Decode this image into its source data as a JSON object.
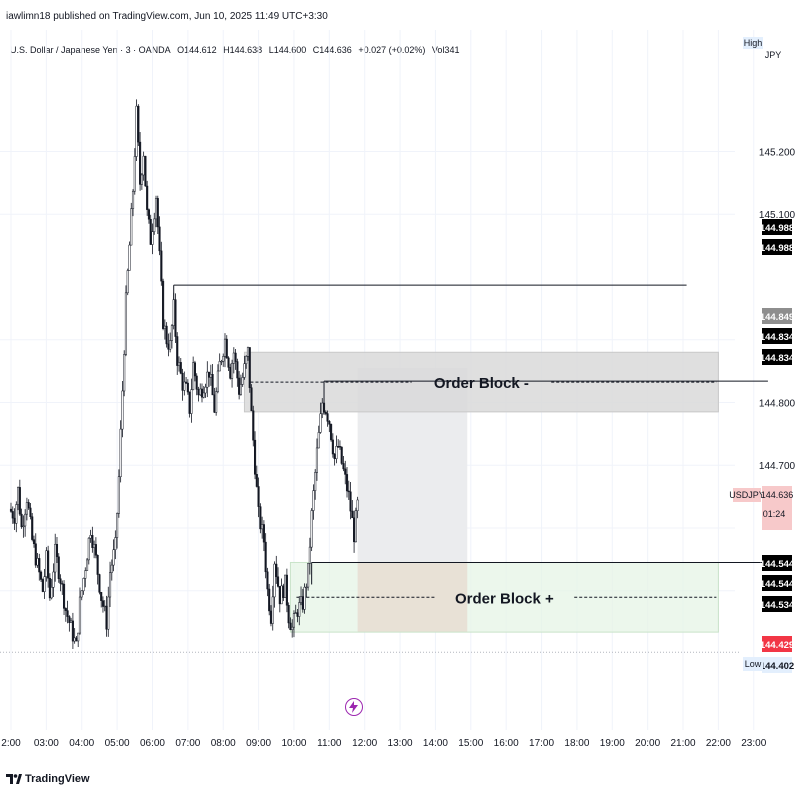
{
  "header": {
    "published": "iawlimn18 published on TradingView.com, Jun 10, 2025 11:49 UTC+3:30"
  },
  "symbol": {
    "name": "U.S. Dollar / Japanese Yen · 3 · OANDA",
    "open": "O144.612",
    "high": "H144.638",
    "low": "L144.600",
    "close": "C144.636",
    "change": "+0.027 (+0.02%)",
    "volume": "Vol341"
  },
  "axis_labels": {
    "currency": "JPY",
    "high_tag": "High",
    "low_tag": "Low",
    "symbol_tag": "USDJPY",
    "countdown": "01:24",
    "last_price": "144.636"
  },
  "watermark": "TradingView",
  "colors": {
    "up": "#26a69a",
    "down": "#ef5350",
    "candle": "#131722",
    "bear_block": "#d9d9d9",
    "bull_block": "#e6f4e6",
    "gap_fill": "#f0a7a8",
    "grey_zone": "#ebecee",
    "price_tag_dark": "#000000",
    "price_tag_red": "#f23645"
  },
  "chart_data": {
    "type": "candlestick",
    "instrument": "USDJPY",
    "timeframe": "3",
    "exchange": "OANDA",
    "ylim": [
      144.38,
      145.29
    ],
    "y_ticks": [
      "145.200",
      "145.100",
      "144.800",
      "144.700"
    ],
    "x_ticks": [
      "2:00",
      "03:00",
      "04:00",
      "05:00",
      "06:00",
      "07:00",
      "08:00",
      "09:00",
      "10:00",
      "11:00",
      "12:00",
      "13:00",
      "14:00",
      "15:00",
      "16:00",
      "17:00",
      "18:00",
      "19:00",
      "20:00",
      "21:00",
      "22:00",
      "23:00"
    ],
    "price_tags": [
      {
        "label": "144.988",
        "style": "dark"
      },
      {
        "label": "144.988",
        "style": "dark"
      },
      {
        "label": "144.849",
        "style": "grey"
      },
      {
        "label": "144.834",
        "style": "dark"
      },
      {
        "label": "144.834",
        "style": "dark"
      },
      {
        "label": "144.544",
        "style": "dark"
      },
      {
        "label": "144.544",
        "style": "dark"
      },
      {
        "label": "144.534",
        "style": "dark"
      },
      {
        "label": "144.429",
        "style": "red"
      },
      {
        "label": "144.402",
        "style": "light"
      }
    ],
    "zones": [
      {
        "label": "Order Block -",
        "kind": "bearish",
        "top": 144.88,
        "bottom": 144.785,
        "from_hour": 8.6,
        "to_hour": 22.0
      },
      {
        "label": "Order Block +",
        "kind": "bullish",
        "top": 144.545,
        "bottom": 144.434,
        "from_hour": 9.9,
        "to_hour": 22.0
      }
    ],
    "levels": [
      {
        "price": 144.987,
        "from_hour": 6.6,
        "to_hour": 21.1
      },
      {
        "price": 144.834,
        "from_hour": 10.85,
        "to_hour": 23.4
      },
      {
        "price": 144.545,
        "from_hour": 10.5,
        "to_hour": 23.4
      }
    ],
    "shaded_ranges": [
      {
        "kind": "projection",
        "top": 144.855,
        "bottom": 144.545,
        "from_hour": 11.8,
        "to_hour": 14.9
      },
      {
        "kind": "gap",
        "top": 144.544,
        "bottom": 144.434,
        "from_hour": 11.8,
        "to_hour": 14.9
      }
    ],
    "price_path": [
      [
        1.95,
        144.63
      ],
      [
        2.1,
        144.62
      ],
      [
        2.2,
        144.66
      ],
      [
        2.3,
        144.6
      ],
      [
        2.45,
        144.65
      ],
      [
        2.6,
        144.58
      ],
      [
        2.75,
        144.54
      ],
      [
        2.9,
        144.5
      ],
      [
        3.0,
        144.55
      ],
      [
        3.1,
        144.49
      ],
      [
        3.25,
        144.56
      ],
      [
        3.4,
        144.52
      ],
      [
        3.55,
        144.47
      ],
      [
        3.7,
        144.44
      ],
      [
        3.85,
        144.41
      ],
      [
        3.95,
        144.48
      ],
      [
        4.1,
        144.54
      ],
      [
        4.25,
        144.6
      ],
      [
        4.4,
        144.55
      ],
      [
        4.55,
        144.49
      ],
      [
        4.7,
        144.45
      ],
      [
        4.8,
        144.53
      ],
      [
        4.95,
        144.57
      ],
      [
        5.05,
        144.68
      ],
      [
        5.15,
        144.82
      ],
      [
        5.25,
        144.96
      ],
      [
        5.35,
        145.05
      ],
      [
        5.45,
        145.14
      ],
      [
        5.55,
        145.26
      ],
      [
        5.65,
        145.15
      ],
      [
        5.75,
        145.2
      ],
      [
        5.85,
        145.1
      ],
      [
        5.95,
        145.06
      ],
      [
        6.1,
        145.13
      ],
      [
        6.2,
        145.03
      ],
      [
        6.3,
        144.93
      ],
      [
        6.4,
        144.9
      ],
      [
        6.5,
        144.89
      ],
      [
        6.6,
        144.95
      ],
      [
        6.7,
        144.87
      ],
      [
        6.85,
        144.83
      ],
      [
        6.95,
        144.82
      ],
      [
        7.05,
        144.79
      ],
      [
        7.15,
        144.86
      ],
      [
        7.3,
        144.81
      ],
      [
        7.45,
        144.83
      ],
      [
        7.6,
        144.85
      ],
      [
        7.75,
        144.79
      ],
      [
        7.9,
        144.86
      ],
      [
        8.05,
        144.9
      ],
      [
        8.2,
        144.85
      ],
      [
        8.3,
        144.88
      ],
      [
        8.45,
        144.82
      ],
      [
        8.55,
        144.84
      ],
      [
        8.7,
        144.88
      ],
      [
        8.8,
        144.78
      ],
      [
        8.9,
        144.7
      ],
      [
        9.0,
        144.62
      ],
      [
        9.15,
        144.58
      ],
      [
        9.25,
        144.5
      ],
      [
        9.35,
        144.46
      ],
      [
        9.45,
        144.55
      ],
      [
        9.6,
        144.49
      ],
      [
        9.75,
        144.51
      ],
      [
        9.85,
        144.46
      ],
      [
        9.95,
        144.44
      ],
      [
        10.1,
        144.47
      ],
      [
        10.25,
        144.48
      ],
      [
        10.4,
        144.53
      ],
      [
        10.5,
        144.62
      ],
      [
        10.65,
        144.72
      ],
      [
        10.8,
        144.8
      ],
      [
        10.9,
        144.79
      ],
      [
        11.0,
        144.77
      ],
      [
        11.15,
        144.71
      ],
      [
        11.25,
        144.73
      ],
      [
        11.4,
        144.69
      ],
      [
        11.55,
        144.65
      ],
      [
        11.7,
        144.59
      ],
      [
        11.8,
        144.636
      ]
    ]
  }
}
